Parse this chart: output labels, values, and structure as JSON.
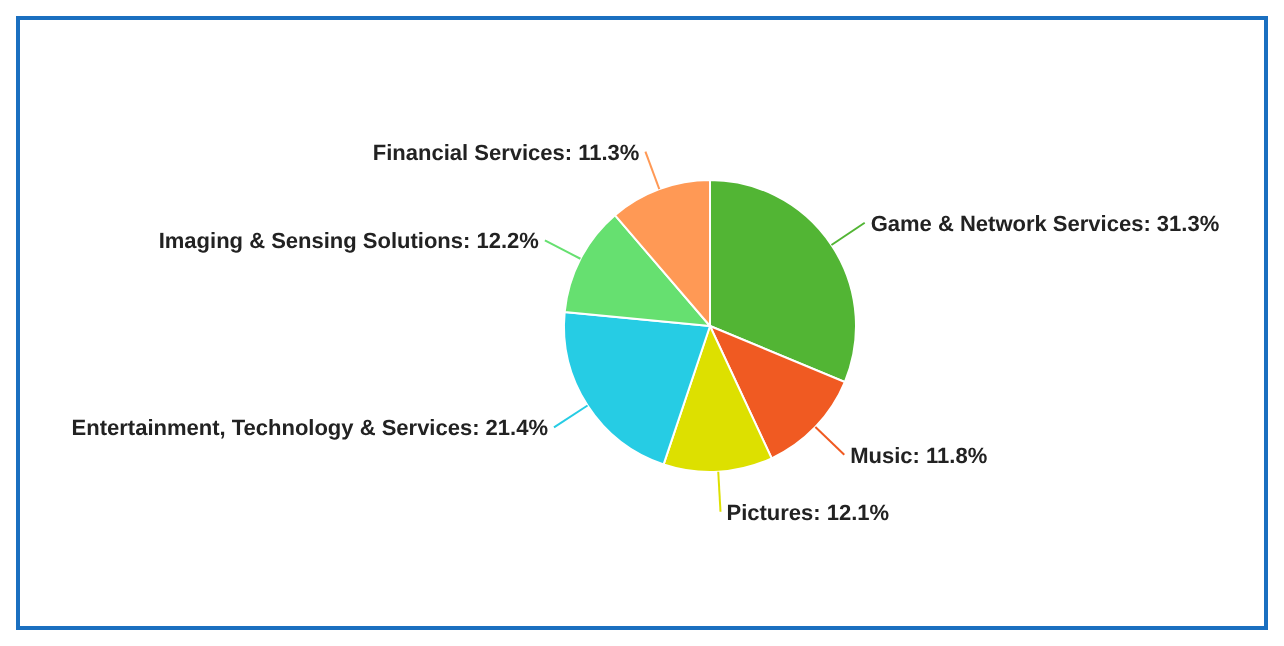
{
  "chart_data": {
    "type": "pie",
    "categories": [
      "Game & Network Services",
      "Music",
      "Pictures",
      "Entertainment, Technology & Services",
      "Imaging & Sensing Solutions",
      "Financial Services"
    ],
    "values": [
      31.3,
      11.8,
      12.1,
      21.4,
      12.2,
      11.3
    ],
    "colors": [
      "#52b534",
      "#f05a22",
      "#dde000",
      "#26cce4",
      "#66e070",
      "#ff9955"
    ],
    "value_labels": [
      "31.3%",
      "11.8%",
      "12.1%",
      "21.4%",
      "12.2%",
      "11.3%"
    ]
  }
}
